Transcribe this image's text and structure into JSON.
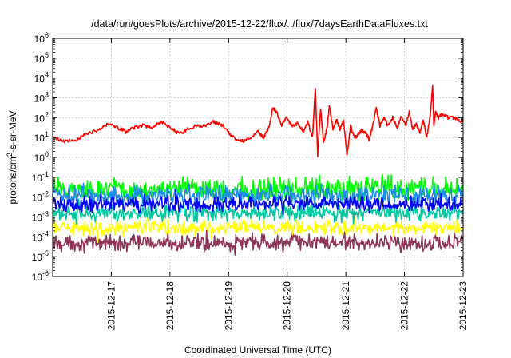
{
  "chart_data": {
    "type": "line",
    "title": "/data/run/goesPlots/archive/2015-12-22/flux/../flux/7daysEarthDataFluxes.txt",
    "xlabel": "Coordinated Universal Time (UTC)",
    "ylabel_main": "protons/cm",
    "ylabel_sup": "2",
    "ylabel_tail": "-s-sr-MeV",
    "yscale": "log",
    "ylim_exp": [
      -6,
      6
    ],
    "ytick_exponents": [
      -6,
      -5,
      -4,
      -3,
      -2,
      -1,
      0,
      1,
      2,
      3,
      4,
      5,
      6
    ],
    "ytick_base": "10",
    "xlim": [
      "2015-12-16T00:00",
      "2015-12-23T00:00"
    ],
    "xlim_days": [
      0,
      7
    ],
    "xticks": [
      {
        "label": "2015-12-17",
        "day": 1
      },
      {
        "label": "2015-12-18",
        "day": 2
      },
      {
        "label": "2015-12-19",
        "day": 3
      },
      {
        "label": "2015-12-20",
        "day": 4
      },
      {
        "label": "2015-12-21",
        "day": 5
      },
      {
        "label": "2015-12-22",
        "day": 6
      },
      {
        "label": "2015-12-23",
        "day": 7
      }
    ],
    "grid": true,
    "series": [
      {
        "color": "#8e3458",
        "noisy_band": true,
        "center_log10": -4.3,
        "spread_log10": 0.6,
        "x_days": [
          0,
          7
        ]
      },
      {
        "color": "#ffff00",
        "noisy_band": true,
        "center_log10": -3.55,
        "spread_log10": 0.55,
        "x_days": [
          0,
          7
        ]
      },
      {
        "color": "#00c8a0",
        "noisy_band": true,
        "center_log10": -2.8,
        "spread_log10": 0.6,
        "x_days": [
          0,
          7
        ]
      },
      {
        "color": "#00ff00",
        "noisy_band": true,
        "center_log10": -1.6,
        "spread_log10": 0.85,
        "x_days": [
          0,
          7
        ]
      },
      {
        "color": "#1e8ce6",
        "noisy_band": true,
        "center_log10": -1.9,
        "spread_log10": 0.75,
        "x_days": [
          0,
          7
        ]
      },
      {
        "color": "#0000ff",
        "noisy_band": true,
        "center_log10": -2.35,
        "spread_log10": 0.55,
        "x_days": [
          0,
          7
        ]
      },
      {
        "color": "#ff0000",
        "noisy_band": false,
        "x_days": [
          0,
          0.2,
          0.4,
          0.6,
          0.8,
          0.95,
          1.1,
          1.25,
          1.4,
          1.55,
          1.7,
          1.85,
          2.0,
          2.15,
          2.3,
          2.45,
          2.6,
          2.75,
          2.9,
          3.05,
          3.2,
          3.35,
          3.5,
          3.6,
          3.7,
          3.75,
          3.82,
          3.9,
          3.98,
          4.08,
          4.18,
          4.28,
          4.35,
          4.43,
          4.48,
          4.52,
          4.57,
          4.62,
          4.68,
          4.72,
          4.78,
          4.84,
          4.9,
          4.96,
          5.02,
          5.08,
          5.14,
          5.2,
          5.27,
          5.34,
          5.4,
          5.46,
          5.52,
          5.58,
          5.65,
          5.72,
          5.8,
          5.88,
          5.95,
          6.02,
          6.08,
          6.14,
          6.2,
          6.26,
          6.32,
          6.38,
          6.44,
          6.48,
          6.5,
          6.53,
          6.58,
          6.65,
          6.75,
          6.85,
          6.95,
          7.0
        ],
        "log10_values": [
          1.0,
          0.8,
          0.9,
          1.2,
          1.4,
          1.7,
          1.5,
          1.3,
          1.5,
          1.6,
          1.5,
          1.8,
          1.5,
          1.2,
          1.4,
          1.6,
          1.6,
          1.8,
          1.6,
          1.1,
          0.8,
          0.9,
          1.3,
          1.0,
          1.6,
          2.5,
          2.3,
          1.6,
          2.0,
          1.6,
          1.7,
          1.3,
          1.8,
          1.0,
          3.5,
          0.1,
          2.5,
          0.7,
          1.5,
          2.6,
          1.4,
          1.9,
          1.4,
          1.8,
          0.1,
          1.6,
          1.0,
          1.1,
          1.4,
          1.2,
          0.9,
          1.6,
          2.5,
          1.6,
          2.0,
          1.6,
          2.0,
          1.5,
          2.1,
          1.6,
          2.3,
          1.4,
          1.7,
          1.2,
          1.9,
          1.0,
          2.1,
          3.6,
          1.6,
          2.3,
          2.0,
          2.2,
          2.0,
          2.0,
          1.8,
          1.9
        ]
      }
    ]
  }
}
